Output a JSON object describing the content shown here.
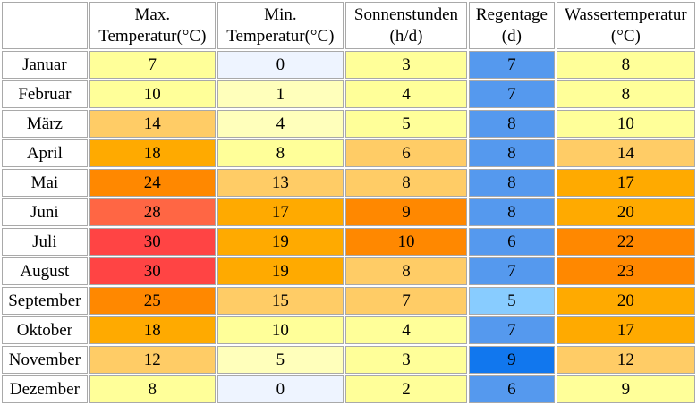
{
  "headers": [
    {
      "line1": "Max.",
      "line2": "Temperatur(°C)"
    },
    {
      "line1": "Min.",
      "line2": "Temperatur(°C)"
    },
    {
      "line1": "Sonnenstunden",
      "line2": "(h/d)"
    },
    {
      "line1": "Regentage",
      "line2": "(d)"
    },
    {
      "line1": "Wassertemperatur",
      "line2": "(°C)"
    }
  ],
  "rows": [
    {
      "month": "Januar",
      "cells": [
        {
          "v": "7",
          "c": "#ffff99"
        },
        {
          "v": "0",
          "c": "#eef4ff"
        },
        {
          "v": "3",
          "c": "#ffff99"
        },
        {
          "v": "7",
          "c": "#5599ee"
        },
        {
          "v": "8",
          "c": "#ffff99"
        }
      ]
    },
    {
      "month": "Februar",
      "cells": [
        {
          "v": "10",
          "c": "#ffff99"
        },
        {
          "v": "1",
          "c": "#ffffbb"
        },
        {
          "v": "4",
          "c": "#ffff99"
        },
        {
          "v": "7",
          "c": "#5599ee"
        },
        {
          "v": "8",
          "c": "#ffff99"
        }
      ]
    },
    {
      "month": "März",
      "cells": [
        {
          "v": "14",
          "c": "#ffcc66"
        },
        {
          "v": "4",
          "c": "#ffffbb"
        },
        {
          "v": "5",
          "c": "#ffff99"
        },
        {
          "v": "8",
          "c": "#5599ee"
        },
        {
          "v": "10",
          "c": "#ffff99"
        }
      ]
    },
    {
      "month": "April",
      "cells": [
        {
          "v": "18",
          "c": "#ffaa00"
        },
        {
          "v": "8",
          "c": "#ffff99"
        },
        {
          "v": "6",
          "c": "#ffcc66"
        },
        {
          "v": "8",
          "c": "#5599ee"
        },
        {
          "v": "14",
          "c": "#ffcc66"
        }
      ]
    },
    {
      "month": "Mai",
      "cells": [
        {
          "v": "24",
          "c": "#ff8800"
        },
        {
          "v": "13",
          "c": "#ffcc66"
        },
        {
          "v": "8",
          "c": "#ffcc66"
        },
        {
          "v": "8",
          "c": "#5599ee"
        },
        {
          "v": "17",
          "c": "#ffaa00"
        }
      ]
    },
    {
      "month": "Juni",
      "cells": [
        {
          "v": "28",
          "c": "#ff6644"
        },
        {
          "v": "17",
          "c": "#ffaa00"
        },
        {
          "v": "9",
          "c": "#ff8800"
        },
        {
          "v": "8",
          "c": "#5599ee"
        },
        {
          "v": "20",
          "c": "#ffaa00"
        }
      ]
    },
    {
      "month": "Juli",
      "cells": [
        {
          "v": "30",
          "c": "#ff4444"
        },
        {
          "v": "19",
          "c": "#ffaa00"
        },
        {
          "v": "10",
          "c": "#ff8800"
        },
        {
          "v": "6",
          "c": "#5599ee"
        },
        {
          "v": "22",
          "c": "#ff8800"
        }
      ]
    },
    {
      "month": "August",
      "cells": [
        {
          "v": "30",
          "c": "#ff4444"
        },
        {
          "v": "19",
          "c": "#ffaa00"
        },
        {
          "v": "8",
          "c": "#ffcc66"
        },
        {
          "v": "7",
          "c": "#5599ee"
        },
        {
          "v": "23",
          "c": "#ff8800"
        }
      ]
    },
    {
      "month": "September",
      "cells": [
        {
          "v": "25",
          "c": "#ff8800"
        },
        {
          "v": "15",
          "c": "#ffcc66"
        },
        {
          "v": "7",
          "c": "#ffcc66"
        },
        {
          "v": "5",
          "c": "#88ccff"
        },
        {
          "v": "20",
          "c": "#ffaa00"
        }
      ]
    },
    {
      "month": "Oktober",
      "cells": [
        {
          "v": "18",
          "c": "#ffaa00"
        },
        {
          "v": "10",
          "c": "#ffff99"
        },
        {
          "v": "4",
          "c": "#ffff99"
        },
        {
          "v": "7",
          "c": "#5599ee"
        },
        {
          "v": "17",
          "c": "#ffaa00"
        }
      ]
    },
    {
      "month": "November",
      "cells": [
        {
          "v": "12",
          "c": "#ffcc66"
        },
        {
          "v": "5",
          "c": "#ffffbb"
        },
        {
          "v": "3",
          "c": "#ffff99"
        },
        {
          "v": "9",
          "c": "#1177ee"
        },
        {
          "v": "12",
          "c": "#ffcc66"
        }
      ]
    },
    {
      "month": "Dezember",
      "cells": [
        {
          "v": "8",
          "c": "#ffff99"
        },
        {
          "v": "0",
          "c": "#eef4ff"
        },
        {
          "v": "2",
          "c": "#ffff99"
        },
        {
          "v": "6",
          "c": "#5599ee"
        },
        {
          "v": "9",
          "c": "#ffff99"
        }
      ]
    }
  ]
}
